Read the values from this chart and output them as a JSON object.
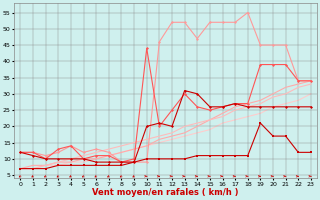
{
  "background_color": "#cff0ee",
  "grid_color": "#888888",
  "xlabel": "Vent moyen/en rafales ( km/h )",
  "xlabel_color": "#cc0000",
  "xlabel_fontsize": 6,
  "ylabel_ticks": [
    5,
    10,
    15,
    20,
    25,
    30,
    35,
    40,
    45,
    50,
    55
  ],
  "xlim": [
    -0.5,
    23.5
  ],
  "ylim": [
    4,
    58
  ],
  "xtick_labels": [
    "0",
    "1",
    "2",
    "3",
    "4",
    "5",
    "6",
    "7",
    "8",
    "9",
    "10",
    "11",
    "12",
    "13",
    "14",
    "15",
    "16",
    "17",
    "18",
    "19",
    "20",
    "21",
    "22",
    "23"
  ],
  "series": [
    {
      "x": [
        0,
        1,
        2,
        3,
        4,
        5,
        6,
        7,
        8,
        9,
        10,
        11,
        12,
        13,
        14,
        15,
        16,
        17,
        18,
        19,
        20,
        21,
        22,
        23
      ],
      "y": [
        7,
        7,
        7,
        8,
        8,
        8,
        8,
        8,
        8,
        9,
        10,
        10,
        10,
        10,
        11,
        11,
        11,
        11,
        11,
        21,
        17,
        17,
        12,
        12
      ],
      "color": "#cc0000",
      "marker": "s",
      "markersize": 1.5,
      "linewidth": 0.8,
      "zorder": 5
    },
    {
      "x": [
        0,
        1,
        2,
        3,
        4,
        5,
        6,
        7,
        8,
        9,
        10,
        11,
        12,
        13,
        14,
        15,
        16,
        17,
        18,
        19,
        20,
        21,
        22,
        23
      ],
      "y": [
        12,
        11,
        10,
        10,
        10,
        10,
        9,
        9,
        9,
        9,
        20,
        21,
        20,
        31,
        30,
        26,
        26,
        27,
        26,
        26,
        26,
        26,
        26,
        26
      ],
      "color": "#cc0000",
      "marker": "D",
      "markersize": 1.5,
      "linewidth": 0.8,
      "zorder": 5
    },
    {
      "x": [
        0,
        1,
        2,
        3,
        4,
        5,
        6,
        7,
        8,
        9,
        10,
        11,
        12,
        13,
        14,
        15,
        16,
        17,
        18,
        19,
        20,
        21,
        22,
        23
      ],
      "y": [
        12,
        12,
        10,
        13,
        14,
        10,
        11,
        11,
        9,
        10,
        44,
        20,
        25,
        30,
        26,
        25,
        26,
        27,
        27,
        39,
        39,
        39,
        34,
        34
      ],
      "color": "#ff5555",
      "marker": "D",
      "markersize": 1.5,
      "linewidth": 0.8,
      "zorder": 4
    },
    {
      "x": [
        0,
        1,
        2,
        3,
        4,
        5,
        6,
        7,
        8,
        9,
        10,
        11,
        12,
        13,
        14,
        15,
        16,
        17,
        18,
        19,
        20,
        21,
        22,
        23
      ],
      "y": [
        12,
        12,
        11,
        12,
        14,
        12,
        13,
        12,
        9,
        9,
        9,
        46,
        52,
        52,
        47,
        52,
        52,
        52,
        55,
        45,
        45,
        45,
        34,
        34
      ],
      "color": "#ff9999",
      "marker": "D",
      "markersize": 1.5,
      "linewidth": 0.8,
      "zorder": 3
    },
    {
      "x": [
        0,
        1,
        2,
        3,
        4,
        5,
        6,
        7,
        8,
        9,
        10,
        11,
        12,
        13,
        14,
        15,
        16,
        17,
        18,
        19,
        20,
        21,
        22,
        23
      ],
      "y": [
        7,
        8,
        8,
        9,
        9,
        10,
        10,
        11,
        12,
        13,
        14,
        16,
        17,
        18,
        20,
        22,
        24,
        26,
        27,
        28,
        30,
        32,
        33,
        34
      ],
      "color": "#ffaaaa",
      "marker": null,
      "markersize": 0,
      "linewidth": 0.8,
      "zorder": 2
    },
    {
      "x": [
        0,
        1,
        2,
        3,
        4,
        5,
        6,
        7,
        8,
        9,
        10,
        11,
        12,
        13,
        14,
        15,
        16,
        17,
        18,
        19,
        20,
        21,
        22,
        23
      ],
      "y": [
        7,
        7,
        8,
        9,
        10,
        11,
        12,
        13,
        14,
        15,
        16,
        17,
        18,
        20,
        21,
        22,
        23,
        25,
        26,
        27,
        29,
        30,
        32,
        33
      ],
      "color": "#ffbbbb",
      "marker": null,
      "markersize": 0,
      "linewidth": 0.8,
      "zorder": 2
    },
    {
      "x": [
        0,
        1,
        2,
        3,
        4,
        5,
        6,
        7,
        8,
        9,
        10,
        11,
        12,
        13,
        14,
        15,
        16,
        17,
        18,
        19,
        20,
        21,
        22,
        23
      ],
      "y": [
        7,
        7,
        8,
        8,
        9,
        9,
        10,
        11,
        12,
        13,
        14,
        15,
        16,
        17,
        18,
        19,
        21,
        22,
        23,
        24,
        26,
        27,
        28,
        30
      ],
      "color": "#ffcccc",
      "marker": null,
      "markersize": 0,
      "linewidth": 0.8,
      "zorder": 1
    }
  ],
  "wind_arrows_color": "#cc0000",
  "tick_fontsize": 4.5
}
